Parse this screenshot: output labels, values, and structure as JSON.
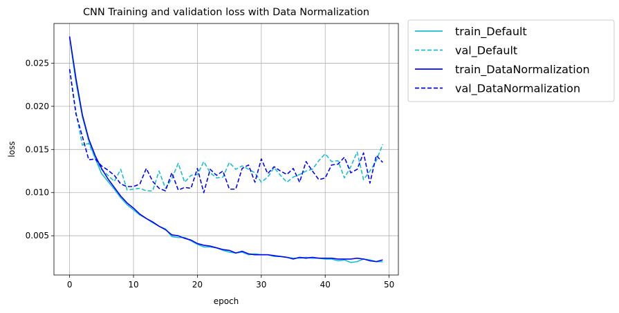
{
  "chart_data": {
    "type": "line",
    "title": "CNN Training and validation loss with Data Normalization",
    "xlabel": "epoch",
    "ylabel": "loss",
    "xlim": [
      -2.45,
      51.45
    ],
    "ylim": [
      0.00045,
      0.0296
    ],
    "xticks": [
      0,
      10,
      20,
      30,
      40,
      50
    ],
    "xtick_labels": [
      "0",
      "10",
      "20",
      "30",
      "40",
      "50"
    ],
    "yticks": [
      0.005,
      0.01,
      0.015,
      0.02,
      0.025
    ],
    "ytick_labels": [
      "0.005",
      "0.010",
      "0.015",
      "0.020",
      "0.025"
    ],
    "grid": true,
    "legend_position": "outside-top-right",
    "x": [
      0,
      1,
      2,
      3,
      4,
      5,
      6,
      7,
      8,
      9,
      10,
      11,
      12,
      13,
      14,
      15,
      16,
      17,
      18,
      19,
      20,
      21,
      22,
      23,
      24,
      25,
      26,
      27,
      28,
      29,
      30,
      31,
      32,
      33,
      34,
      35,
      36,
      37,
      38,
      39,
      40,
      41,
      42,
      43,
      44,
      45,
      46,
      47,
      48,
      49
    ],
    "series": [
      {
        "name": "train_Default",
        "color": "#17becf",
        "dash": "solid",
        "values": [
          0.028,
          0.0228,
          0.0188,
          0.016,
          0.014,
          0.0122,
          0.0113,
          0.0104,
          0.0094,
          0.0086,
          0.008,
          0.0074,
          0.007,
          0.0065,
          0.0061,
          0.0058,
          0.0049,
          0.0048,
          0.0048,
          0.0044,
          0.004,
          0.0037,
          0.0037,
          0.0036,
          0.0033,
          0.0031,
          0.003,
          0.0031,
          0.0028,
          0.0029,
          0.0028,
          0.0028,
          0.0026,
          0.0026,
          0.0025,
          0.0024,
          0.0024,
          0.0025,
          0.0024,
          0.0024,
          0.0023,
          0.0023,
          0.0021,
          0.0022,
          0.0019,
          0.002,
          0.0023,
          0.0022,
          0.002,
          0.002
        ]
      },
      {
        "name": "val_Default",
        "color": "#17becf",
        "dash": "dashed",
        "values": [
          0.0243,
          0.0193,
          0.0155,
          0.0157,
          0.014,
          0.0127,
          0.012,
          0.0113,
          0.0127,
          0.0103,
          0.0104,
          0.0105,
          0.0102,
          0.0102,
          0.0125,
          0.0105,
          0.0116,
          0.0134,
          0.0112,
          0.012,
          0.0121,
          0.0136,
          0.0123,
          0.0117,
          0.0118,
          0.0135,
          0.0127,
          0.0131,
          0.0127,
          0.0123,
          0.0112,
          0.0118,
          0.0129,
          0.012,
          0.0112,
          0.0118,
          0.0121,
          0.0125,
          0.0127,
          0.0137,
          0.0145,
          0.0136,
          0.0137,
          0.0117,
          0.013,
          0.0147,
          0.0115,
          0.0125,
          0.0137,
          0.0156
        ]
      },
      {
        "name": "train_DataNormalization",
        "color": "#0000ff",
        "dash": "solid",
        "values": [
          0.0281,
          0.0232,
          0.019,
          0.0162,
          0.0143,
          0.0128,
          0.0116,
          0.0106,
          0.0096,
          0.0088,
          0.0082,
          0.0075,
          0.007,
          0.0066,
          0.0061,
          0.0057,
          0.0051,
          0.005,
          0.0047,
          0.0045,
          0.0041,
          0.0039,
          0.0038,
          0.0036,
          0.0034,
          0.0033,
          0.003,
          0.0032,
          0.0029,
          0.0028,
          0.0028,
          0.0028,
          0.0027,
          0.0026,
          0.0025,
          0.0023,
          0.0025,
          0.0024,
          0.0025,
          0.0024,
          0.0024,
          0.0024,
          0.0023,
          0.0023,
          0.0023,
          0.0024,
          0.0023,
          0.0021,
          0.002,
          0.0022
        ]
      },
      {
        "name": "val_DataNormalization",
        "color": "#0000ff",
        "dash": "dashed",
        "values": [
          0.0243,
          0.0191,
          0.0165,
          0.0138,
          0.0139,
          0.0131,
          0.0126,
          0.012,
          0.011,
          0.0107,
          0.0107,
          0.011,
          0.0128,
          0.0113,
          0.0105,
          0.0102,
          0.0123,
          0.0103,
          0.0106,
          0.0105,
          0.0128,
          0.01,
          0.0127,
          0.012,
          0.0125,
          0.0104,
          0.0104,
          0.0128,
          0.0132,
          0.0112,
          0.0139,
          0.0122,
          0.013,
          0.0125,
          0.0121,
          0.0128,
          0.0112,
          0.0136,
          0.0125,
          0.0115,
          0.0117,
          0.0132,
          0.0133,
          0.0141,
          0.0123,
          0.0127,
          0.0146,
          0.0111,
          0.0143,
          0.0135
        ]
      }
    ]
  }
}
